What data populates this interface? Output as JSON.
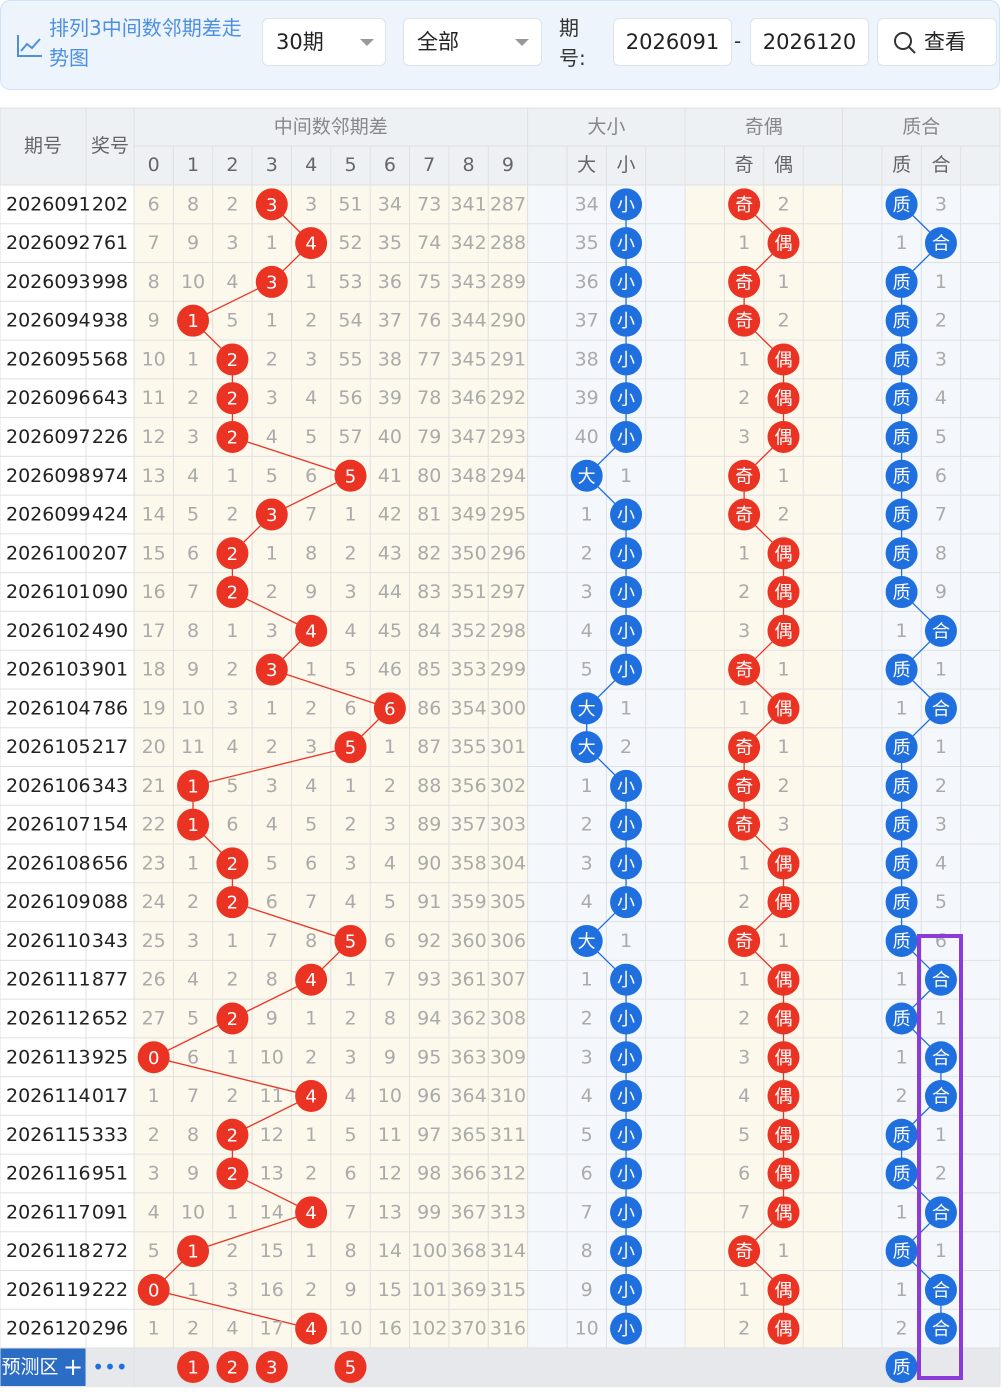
{
  "header": {
    "title": "排列3中间数邻期差走势图",
    "count": "30期",
    "filter": "全部",
    "period_label": "期号:",
    "from": "2026091",
    "dash": "-",
    "to": "2026120",
    "button": "查看"
  },
  "table": {
    "head": {
      "period": "期号",
      "number": "奖号",
      "diff": "中间数邻期差",
      "diff_cols": [
        "0",
        "1",
        "2",
        "3",
        "4",
        "5",
        "6",
        "7",
        "8",
        "9"
      ],
      "size": "大小",
      "size_cols": [
        "大",
        "小"
      ],
      "parity": "奇偶",
      "parity_cols": [
        "奇",
        "偶"
      ],
      "prime": "质合",
      "prime_cols": [
        "质",
        "合"
      ]
    },
    "rows": [
      {
        "period": "2026091",
        "number": "202",
        "diff": 3,
        "miss": [
          6,
          8,
          2,
          null,
          3,
          51,
          34,
          73,
          341,
          287
        ],
        "size": "小",
        "size_miss": [
          34,
          null
        ],
        "parity": "奇",
        "parity_miss": [
          null,
          2
        ],
        "prime": "质",
        "prime_miss": [
          null,
          3
        ]
      },
      {
        "period": "2026092",
        "number": "761",
        "diff": 4,
        "miss": [
          7,
          9,
          3,
          1,
          null,
          52,
          35,
          74,
          342,
          288
        ],
        "size": "小",
        "size_miss": [
          35,
          null
        ],
        "parity": "偶",
        "parity_miss": [
          1,
          null
        ],
        "prime": "合",
        "prime_miss": [
          1,
          null
        ]
      },
      {
        "period": "2026093",
        "number": "998",
        "diff": 3,
        "miss": [
          8,
          10,
          4,
          null,
          1,
          53,
          36,
          75,
          343,
          289
        ],
        "size": "小",
        "size_miss": [
          36,
          null
        ],
        "parity": "奇",
        "parity_miss": [
          null,
          1
        ],
        "prime": "质",
        "prime_miss": [
          null,
          1
        ]
      },
      {
        "period": "2026094",
        "number": "938",
        "diff": 1,
        "miss": [
          9,
          null,
          5,
          1,
          2,
          54,
          37,
          76,
          344,
          290
        ],
        "size": "小",
        "size_miss": [
          37,
          null
        ],
        "parity": "奇",
        "parity_miss": [
          null,
          2
        ],
        "prime": "质",
        "prime_miss": [
          null,
          2
        ]
      },
      {
        "period": "2026095",
        "number": "568",
        "diff": 2,
        "miss": [
          10,
          1,
          null,
          2,
          3,
          55,
          38,
          77,
          345,
          291
        ],
        "size": "小",
        "size_miss": [
          38,
          null
        ],
        "parity": "偶",
        "parity_miss": [
          1,
          null
        ],
        "prime": "质",
        "prime_miss": [
          null,
          3
        ]
      },
      {
        "period": "2026096",
        "number": "643",
        "diff": 2,
        "miss": [
          11,
          2,
          null,
          3,
          4,
          56,
          39,
          78,
          346,
          292
        ],
        "size": "小",
        "size_miss": [
          39,
          null
        ],
        "parity": "偶",
        "parity_miss": [
          2,
          null
        ],
        "prime": "质",
        "prime_miss": [
          null,
          4
        ]
      },
      {
        "period": "2026097",
        "number": "226",
        "diff": 2,
        "miss": [
          12,
          3,
          null,
          4,
          5,
          57,
          40,
          79,
          347,
          293
        ],
        "size": "小",
        "size_miss": [
          40,
          null
        ],
        "parity": "偶",
        "parity_miss": [
          3,
          null
        ],
        "prime": "质",
        "prime_miss": [
          null,
          5
        ]
      },
      {
        "period": "2026098",
        "number": "974",
        "diff": 5,
        "miss": [
          13,
          4,
          1,
          5,
          6,
          null,
          41,
          80,
          348,
          294
        ],
        "size": "大",
        "size_miss": [
          null,
          1
        ],
        "parity": "奇",
        "parity_miss": [
          null,
          1
        ],
        "prime": "质",
        "prime_miss": [
          null,
          6
        ]
      },
      {
        "period": "2026099",
        "number": "424",
        "diff": 3,
        "miss": [
          14,
          5,
          2,
          null,
          7,
          1,
          42,
          81,
          349,
          295
        ],
        "size": "小",
        "size_miss": [
          1,
          null
        ],
        "parity": "奇",
        "parity_miss": [
          null,
          2
        ],
        "prime": "质",
        "prime_miss": [
          null,
          7
        ]
      },
      {
        "period": "2026100",
        "number": "207",
        "diff": 2,
        "miss": [
          15,
          6,
          null,
          1,
          8,
          2,
          43,
          82,
          350,
          296
        ],
        "size": "小",
        "size_miss": [
          2,
          null
        ],
        "parity": "偶",
        "parity_miss": [
          1,
          null
        ],
        "prime": "质",
        "prime_miss": [
          null,
          8
        ]
      },
      {
        "period": "2026101",
        "number": "090",
        "diff": 2,
        "miss": [
          16,
          7,
          null,
          2,
          9,
          3,
          44,
          83,
          351,
          297
        ],
        "size": "小",
        "size_miss": [
          3,
          null
        ],
        "parity": "偶",
        "parity_miss": [
          2,
          null
        ],
        "prime": "质",
        "prime_miss": [
          null,
          9
        ]
      },
      {
        "period": "2026102",
        "number": "490",
        "diff": 4,
        "miss": [
          17,
          8,
          1,
          3,
          null,
          4,
          45,
          84,
          352,
          298
        ],
        "size": "小",
        "size_miss": [
          4,
          null
        ],
        "parity": "偶",
        "parity_miss": [
          3,
          null
        ],
        "prime": "合",
        "prime_miss": [
          1,
          null
        ]
      },
      {
        "period": "2026103",
        "number": "901",
        "diff": 3,
        "miss": [
          18,
          9,
          2,
          null,
          1,
          5,
          46,
          85,
          353,
          299
        ],
        "size": "小",
        "size_miss": [
          5,
          null
        ],
        "parity": "奇",
        "parity_miss": [
          null,
          1
        ],
        "prime": "质",
        "prime_miss": [
          null,
          1
        ]
      },
      {
        "period": "2026104",
        "number": "786",
        "diff": 6,
        "miss": [
          19,
          10,
          3,
          1,
          2,
          6,
          null,
          86,
          354,
          300
        ],
        "size": "大",
        "size_miss": [
          null,
          1
        ],
        "parity": "偶",
        "parity_miss": [
          1,
          null
        ],
        "prime": "合",
        "prime_miss": [
          1,
          null
        ]
      },
      {
        "period": "2026105",
        "number": "217",
        "diff": 5,
        "miss": [
          20,
          11,
          4,
          2,
          3,
          null,
          1,
          87,
          355,
          301
        ],
        "size": "大",
        "size_miss": [
          null,
          2
        ],
        "parity": "奇",
        "parity_miss": [
          null,
          1
        ],
        "prime": "质",
        "prime_miss": [
          null,
          1
        ]
      },
      {
        "period": "2026106",
        "number": "343",
        "diff": 1,
        "miss": [
          21,
          null,
          5,
          3,
          4,
          1,
          2,
          88,
          356,
          302
        ],
        "size": "小",
        "size_miss": [
          1,
          null
        ],
        "parity": "奇",
        "parity_miss": [
          null,
          2
        ],
        "prime": "质",
        "prime_miss": [
          null,
          2
        ]
      },
      {
        "period": "2026107",
        "number": "154",
        "diff": 1,
        "miss": [
          22,
          null,
          6,
          4,
          5,
          2,
          3,
          89,
          357,
          303
        ],
        "size": "小",
        "size_miss": [
          2,
          null
        ],
        "parity": "奇",
        "parity_miss": [
          null,
          3
        ],
        "prime": "质",
        "prime_miss": [
          null,
          3
        ]
      },
      {
        "period": "2026108",
        "number": "656",
        "diff": 2,
        "miss": [
          23,
          1,
          null,
          5,
          6,
          3,
          4,
          90,
          358,
          304
        ],
        "size": "小",
        "size_miss": [
          3,
          null
        ],
        "parity": "偶",
        "parity_miss": [
          1,
          null
        ],
        "prime": "质",
        "prime_miss": [
          null,
          4
        ]
      },
      {
        "period": "2026109",
        "number": "088",
        "diff": 2,
        "miss": [
          24,
          2,
          null,
          6,
          7,
          4,
          5,
          91,
          359,
          305
        ],
        "size": "小",
        "size_miss": [
          4,
          null
        ],
        "parity": "偶",
        "parity_miss": [
          2,
          null
        ],
        "prime": "质",
        "prime_miss": [
          null,
          5
        ]
      },
      {
        "period": "2026110",
        "number": "343",
        "diff": 5,
        "miss": [
          25,
          3,
          1,
          7,
          8,
          null,
          6,
          92,
          360,
          306
        ],
        "size": "大",
        "size_miss": [
          null,
          1
        ],
        "parity": "奇",
        "parity_miss": [
          null,
          1
        ],
        "prime": "质",
        "prime_miss": [
          null,
          6
        ]
      },
      {
        "period": "2026111",
        "number": "877",
        "diff": 4,
        "miss": [
          26,
          4,
          2,
          8,
          null,
          1,
          7,
          93,
          361,
          307
        ],
        "size": "小",
        "size_miss": [
          1,
          null
        ],
        "parity": "偶",
        "parity_miss": [
          1,
          null
        ],
        "prime": "合",
        "prime_miss": [
          1,
          null
        ]
      },
      {
        "period": "2026112",
        "number": "652",
        "diff": 2,
        "miss": [
          27,
          5,
          null,
          9,
          1,
          2,
          8,
          94,
          362,
          308
        ],
        "size": "小",
        "size_miss": [
          2,
          null
        ],
        "parity": "偶",
        "parity_miss": [
          2,
          null
        ],
        "prime": "质",
        "prime_miss": [
          null,
          1
        ]
      },
      {
        "period": "2026113",
        "number": "925",
        "diff": 0,
        "miss": [
          null,
          6,
          1,
          10,
          2,
          3,
          9,
          95,
          363,
          309
        ],
        "size": "小",
        "size_miss": [
          3,
          null
        ],
        "parity": "偶",
        "parity_miss": [
          3,
          null
        ],
        "prime": "合",
        "prime_miss": [
          1,
          null
        ]
      },
      {
        "period": "2026114",
        "number": "017",
        "diff": 4,
        "miss": [
          1,
          7,
          2,
          11,
          null,
          4,
          10,
          96,
          364,
          310
        ],
        "size": "小",
        "size_miss": [
          4,
          null
        ],
        "parity": "偶",
        "parity_miss": [
          4,
          null
        ],
        "prime": "合",
        "prime_miss": [
          2,
          null
        ]
      },
      {
        "period": "2026115",
        "number": "333",
        "diff": 2,
        "miss": [
          2,
          8,
          null,
          12,
          1,
          5,
          11,
          97,
          365,
          311
        ],
        "size": "小",
        "size_miss": [
          5,
          null
        ],
        "parity": "偶",
        "parity_miss": [
          5,
          null
        ],
        "prime": "质",
        "prime_miss": [
          null,
          1
        ]
      },
      {
        "period": "2026116",
        "number": "951",
        "diff": 2,
        "miss": [
          3,
          9,
          null,
          13,
          2,
          6,
          12,
          98,
          366,
          312
        ],
        "size": "小",
        "size_miss": [
          6,
          null
        ],
        "parity": "偶",
        "parity_miss": [
          6,
          null
        ],
        "prime": "质",
        "prime_miss": [
          null,
          2
        ]
      },
      {
        "period": "2026117",
        "number": "091",
        "diff": 4,
        "miss": [
          4,
          10,
          1,
          14,
          null,
          7,
          13,
          99,
          367,
          313
        ],
        "size": "小",
        "size_miss": [
          7,
          null
        ],
        "parity": "偶",
        "parity_miss": [
          7,
          null
        ],
        "prime": "合",
        "prime_miss": [
          1,
          null
        ]
      },
      {
        "period": "2026118",
        "number": "272",
        "diff": 1,
        "miss": [
          5,
          null,
          2,
          15,
          1,
          8,
          14,
          100,
          368,
          314
        ],
        "size": "小",
        "size_miss": [
          8,
          null
        ],
        "parity": "奇",
        "parity_miss": [
          null,
          1
        ],
        "prime": "质",
        "prime_miss": [
          null,
          1
        ]
      },
      {
        "period": "2026119",
        "number": "222",
        "diff": 0,
        "miss": [
          null,
          1,
          3,
          16,
          2,
          9,
          15,
          101,
          369,
          315
        ],
        "size": "小",
        "size_miss": [
          9,
          null
        ],
        "parity": "偶",
        "parity_miss": [
          1,
          null
        ],
        "prime": "合",
        "prime_miss": [
          1,
          null
        ]
      },
      {
        "period": "2026120",
        "number": "296",
        "diff": 4,
        "miss": [
          1,
          2,
          4,
          17,
          null,
          10,
          16,
          102,
          370,
          316
        ],
        "size": "小",
        "size_miss": [
          10,
          null
        ],
        "parity": "偶",
        "parity_miss": [
          2,
          null
        ],
        "prime": "合",
        "prime_miss": [
          2,
          null
        ]
      }
    ],
    "predict": {
      "label": "预测区",
      "plus": "+",
      "more": "•••",
      "diff": [
        1,
        2,
        3,
        5
      ],
      "prime": "质"
    }
  }
}
